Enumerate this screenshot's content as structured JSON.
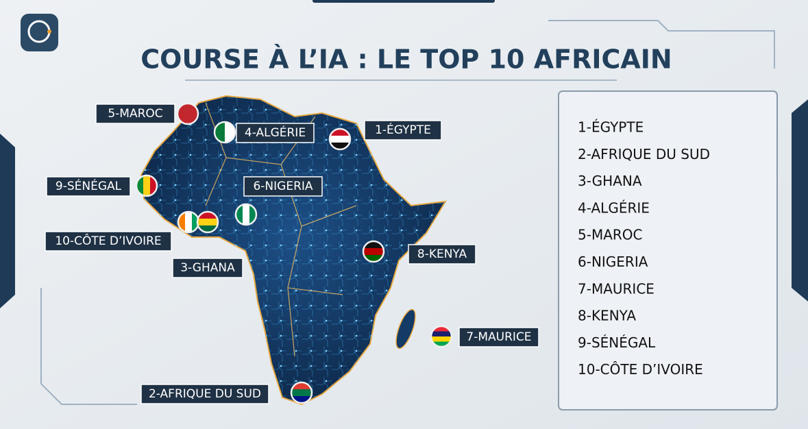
{
  "title": "COURSE À L’IA : LE TOP 10 AFRICAIN",
  "map_labels": [
    "5-MAROC",
    "4-ALGÉRIE",
    "1-ÉGYPTE",
    "9-SÉNÉGAL",
    "6-NIGERIA",
    "10-CÔTE D’IVOIRE",
    "3-GHANA",
    "8-KENYA",
    "7-MAURICE",
    "2-AFRIQUE DU SUD"
  ],
  "ranking": [
    "1-ÉGYPTE",
    "2-AFRIQUE DU SUD",
    "3-GHANA",
    "4-ALGÉRIE",
    "5-MAROC",
    "6-NIGERIA",
    "7-MAURICE",
    "8-KENYA",
    "9-SÉNÉGAL",
    "10-CÔTE D’IVOIRE"
  ]
}
